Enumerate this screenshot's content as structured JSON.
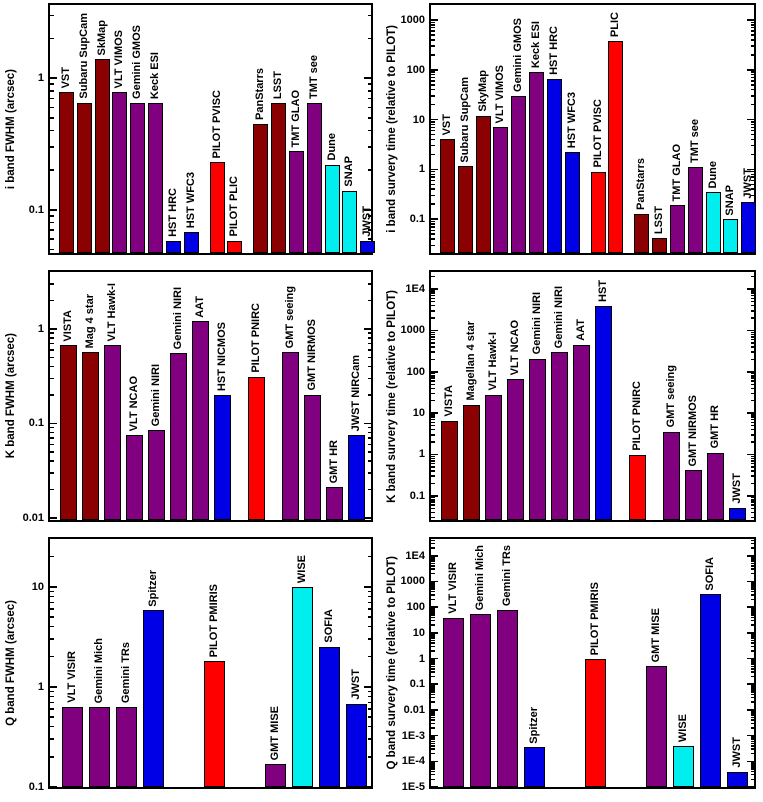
{
  "palette": {
    "darkred": "#8B0000",
    "purple": "#800080",
    "red": "#FF0000",
    "cyan": "#00EEEE",
    "blue": "#0000E6"
  },
  "chart_data": [
    {
      "type": "bar",
      "position": "top-left",
      "ylabel": "i band FWHM (arcsec)",
      "yscale": "log",
      "ylim": [
        0.047,
        3.6
      ],
      "grid": false,
      "yticks": [
        {
          "value": 1,
          "label": "1"
        },
        {
          "value": 0.1,
          "label": "0.1"
        }
      ],
      "bars": [
        {
          "label": "VST",
          "value": 0.78,
          "color": "darkred",
          "group": 0
        },
        {
          "label": "Subaru SupCam",
          "value": 0.65,
          "color": "darkred",
          "group": 0
        },
        {
          "label": "SkMap",
          "value": 1.4,
          "color": "darkred",
          "group": 0
        },
        {
          "label": "VLT VIMOS",
          "value": 0.78,
          "color": "purple",
          "group": 0
        },
        {
          "label": "Gemini GMOS",
          "value": 0.65,
          "color": "purple",
          "group": 0
        },
        {
          "label": "Keck ESI",
          "value": 0.65,
          "color": "purple",
          "group": 0
        },
        {
          "label": "HST HRC",
          "value": 0.058,
          "color": "blue",
          "group": 0
        },
        {
          "label": "HST WFC3",
          "value": 0.068,
          "color": "blue",
          "group": 0
        },
        {
          "label": "PILOT PVISC",
          "value": 0.23,
          "color": "red",
          "group": 1
        },
        {
          "label": "PILOT PLIC",
          "value": 0.058,
          "color": "red",
          "group": 1
        },
        {
          "label": "PanStarrs",
          "value": 0.45,
          "color": "darkred",
          "group": 2
        },
        {
          "label": "LSST",
          "value": 0.65,
          "color": "darkred",
          "group": 2
        },
        {
          "label": "TMT GLAO",
          "value": 0.28,
          "color": "purple",
          "group": 2
        },
        {
          "label": "TMT see",
          "value": 0.65,
          "color": "purple",
          "group": 2
        },
        {
          "label": "Dune",
          "value": 0.22,
          "color": "cyan",
          "group": 2
        },
        {
          "label": "SNAP",
          "value": 0.14,
          "color": "cyan",
          "group": 2
        },
        {
          "label": "JWST",
          "value": 0.058,
          "color": "blue",
          "group": 2
        }
      ]
    },
    {
      "type": "bar",
      "position": "top-right",
      "ylabel": "i band survery time (relative to PILOT)",
      "yscale": "log",
      "ylim": [
        0.021,
        2000
      ],
      "grid": false,
      "yticks": [
        {
          "value": 1000,
          "label": "1000"
        },
        {
          "value": 100,
          "label": "100"
        },
        {
          "value": 10,
          "label": "10"
        },
        {
          "value": 1,
          "label": "1"
        },
        {
          "value": 0.1,
          "label": "0.1"
        }
      ],
      "bars": [
        {
          "label": "VST",
          "value": 4,
          "color": "darkred",
          "group": 0
        },
        {
          "label": "Subaru SupCam",
          "value": 1.15,
          "color": "darkred",
          "group": 0
        },
        {
          "label": "SkyMap",
          "value": 12,
          "color": "darkred",
          "group": 0
        },
        {
          "label": "VLT VIMOS",
          "value": 7,
          "color": "purple",
          "group": 0
        },
        {
          "label": "Gemini GMOS",
          "value": 30,
          "color": "purple",
          "group": 0
        },
        {
          "label": "Keck ESI",
          "value": 90,
          "color": "purple",
          "group": 0
        },
        {
          "label": "HST HRC",
          "value": 65,
          "color": "blue",
          "group": 0
        },
        {
          "label": "HST WFC3",
          "value": 2.2,
          "color": "blue",
          "group": 0
        },
        {
          "label": "PILOT PVISC",
          "value": 0.9,
          "color": "red",
          "group": 1
        },
        {
          "label": "PLIC",
          "value": 380,
          "color": "red",
          "group": 1
        },
        {
          "label": "PanStarrs",
          "value": 0.13,
          "color": "darkred",
          "group": 2
        },
        {
          "label": "LSST",
          "value": 0.042,
          "color": "darkred",
          "group": 2
        },
        {
          "label": "TMT GLAO",
          "value": 0.19,
          "color": "purple",
          "group": 2
        },
        {
          "label": "TMT see",
          "value": 1.1,
          "color": "purple",
          "group": 2
        },
        {
          "label": "Dune",
          "value": 0.35,
          "color": "cyan",
          "group": 2
        },
        {
          "label": "SNAP",
          "value": 0.1,
          "color": "cyan",
          "group": 2
        },
        {
          "label": "JWST",
          "value": 0.22,
          "color": "blue",
          "group": 2
        }
      ]
    },
    {
      "type": "bar",
      "position": "middle-left",
      "ylabel": "K band FWHM (arcsec)",
      "yscale": "log",
      "ylim": [
        0.0095,
        4.0
      ],
      "grid": false,
      "yticks": [
        {
          "value": 1,
          "label": "1"
        },
        {
          "value": 0.1,
          "label": "0.1"
        },
        {
          "value": 0.01,
          "label": "0.01"
        }
      ],
      "bars": [
        {
          "label": "VISTA",
          "value": 0.67,
          "color": "darkred",
          "group": 0
        },
        {
          "label": "Mag 4 star",
          "value": 0.57,
          "color": "darkred",
          "group": 0
        },
        {
          "label": "VLT Hawk-I",
          "value": 0.67,
          "color": "purple",
          "group": 0
        },
        {
          "label": "VLT NCAO",
          "value": 0.075,
          "color": "purple",
          "group": 0
        },
        {
          "label": "Gemini NIRI",
          "value": 0.085,
          "color": "purple",
          "group": 0
        },
        {
          "label": "Gemini NIRI",
          "value": 0.55,
          "color": "purple",
          "group": 0
        },
        {
          "label": "AAT",
          "value": 1.2,
          "color": "purple",
          "group": 0
        },
        {
          "label": "HST NICMOS",
          "value": 0.2,
          "color": "blue",
          "group": 0
        },
        {
          "label": "PILOT PNIRC",
          "value": 0.31,
          "color": "red",
          "group": 1
        },
        {
          "label": "GMT seeing",
          "value": 0.57,
          "color": "purple",
          "group": 2
        },
        {
          "label": "GMT NIRMOS",
          "value": 0.2,
          "color": "purple",
          "group": 2
        },
        {
          "label": "GMT HR",
          "value": 0.021,
          "color": "purple",
          "group": 2
        },
        {
          "label": "JWST NIRCam",
          "value": 0.075,
          "color": "blue",
          "group": 2
        }
      ]
    },
    {
      "type": "bar",
      "position": "middle-right",
      "ylabel": "K band survery time (relative to PILOT)",
      "yscale": "log",
      "ylim": [
        0.026,
        26000
      ],
      "grid": false,
      "yticks": [
        {
          "value": 10000,
          "label": "1E4"
        },
        {
          "value": 1000,
          "label": "1000"
        },
        {
          "value": 100,
          "label": "100"
        },
        {
          "value": 10,
          "label": "10"
        },
        {
          "value": 1,
          "label": "1"
        },
        {
          "value": 0.1,
          "label": "0.1"
        }
      ],
      "bars": [
        {
          "label": "VISTA",
          "value": 6.5,
          "color": "darkred",
          "group": 0
        },
        {
          "label": "Magellan 4 star",
          "value": 16,
          "color": "darkred",
          "group": 0
        },
        {
          "label": "VLT Hawk-I",
          "value": 28,
          "color": "purple",
          "group": 0
        },
        {
          "label": "VLT NCAO",
          "value": 67,
          "color": "purple",
          "group": 0
        },
        {
          "label": "Gemini NIRI",
          "value": 210,
          "color": "purple",
          "group": 0
        },
        {
          "label": "Gemini NIRI",
          "value": 300,
          "color": "purple",
          "group": 0
        },
        {
          "label": "AAT",
          "value": 440,
          "color": "purple",
          "group": 0
        },
        {
          "label": "HST",
          "value": 4000,
          "color": "blue",
          "group": 0
        },
        {
          "label": "PILOT PNIRC",
          "value": 1.0,
          "color": "red",
          "group": 1
        },
        {
          "label": "GMT seeing",
          "value": 3.6,
          "color": "purple",
          "group": 2
        },
        {
          "label": "GMT NIRMOS",
          "value": 0.42,
          "color": "purple",
          "group": 2
        },
        {
          "label": "GMT HR",
          "value": 1.1,
          "color": "purple",
          "group": 2
        },
        {
          "label": "JWST",
          "value": 0.052,
          "color": "blue",
          "group": 2
        }
      ]
    },
    {
      "type": "bar",
      "position": "bottom-left",
      "ylabel": "Q band FWHM (arcsec)",
      "yscale": "log",
      "ylim": [
        0.1,
        30
      ],
      "grid": false,
      "yticks": [
        {
          "value": 10,
          "label": "10"
        },
        {
          "value": 1,
          "label": "1"
        },
        {
          "value": 0.1,
          "label": "0.1"
        }
      ],
      "bars": [
        {
          "label": "VLT VISIR",
          "value": 0.63,
          "color": "purple",
          "group": 0
        },
        {
          "label": "Gemini Mich",
          "value": 0.63,
          "color": "purple",
          "group": 0
        },
        {
          "label": "Gemini TRs",
          "value": 0.63,
          "color": "purple",
          "group": 0
        },
        {
          "label": "Spitzer",
          "value": 5.8,
          "color": "blue",
          "group": 0
        },
        {
          "label": "PILOT PMIRIS",
          "value": 1.8,
          "color": "red",
          "group": 1
        },
        {
          "label": "GMT MISE",
          "value": 0.17,
          "color": "purple",
          "group": 2
        },
        {
          "label": "WISE",
          "value": 10,
          "color": "cyan",
          "group": 2
        },
        {
          "label": "SOFIA",
          "value": 2.5,
          "color": "blue",
          "group": 2
        },
        {
          "label": "JWST",
          "value": 0.68,
          "color": "blue",
          "group": 2
        }
      ]
    },
    {
      "type": "bar",
      "position": "bottom-right",
      "ylabel": "Q band survery time (relative to PILOT)",
      "yscale": "log",
      "ylim": [
        1e-05,
        45000
      ],
      "grid": false,
      "yticks": [
        {
          "value": 10000,
          "label": "1E4"
        },
        {
          "value": 1000,
          "label": "1000"
        },
        {
          "value": 100,
          "label": "100"
        },
        {
          "value": 10,
          "label": "10"
        },
        {
          "value": 1,
          "label": "1"
        },
        {
          "value": 0.1,
          "label": "0.1"
        },
        {
          "value": 0.01,
          "label": "0.01"
        },
        {
          "value": 0.001,
          "label": "1E-3"
        },
        {
          "value": 0.0001,
          "label": "1E-4"
        },
        {
          "value": 1e-05,
          "label": "1E-5"
        }
      ],
      "bars": [
        {
          "label": "VLT VISIR",
          "value": 38,
          "color": "purple",
          "group": 0
        },
        {
          "label": "Gemini Mich",
          "value": 52,
          "color": "purple",
          "group": 0
        },
        {
          "label": "Gemini TRs",
          "value": 75,
          "color": "purple",
          "group": 0
        },
        {
          "label": "Spitzer",
          "value": 0.00035,
          "color": "blue",
          "group": 0
        },
        {
          "label": "PILOT PMIRIS",
          "value": 0.95,
          "color": "red",
          "group": 1
        },
        {
          "label": "GMT MISE",
          "value": 0.5,
          "color": "purple",
          "group": 2
        },
        {
          "label": "WISE",
          "value": 0.0004,
          "color": "cyan",
          "group": 2
        },
        {
          "label": "SOFIA",
          "value": 320,
          "color": "blue",
          "group": 2
        },
        {
          "label": "JWST",
          "value": 4e-05,
          "color": "blue",
          "group": 2
        }
      ]
    }
  ]
}
